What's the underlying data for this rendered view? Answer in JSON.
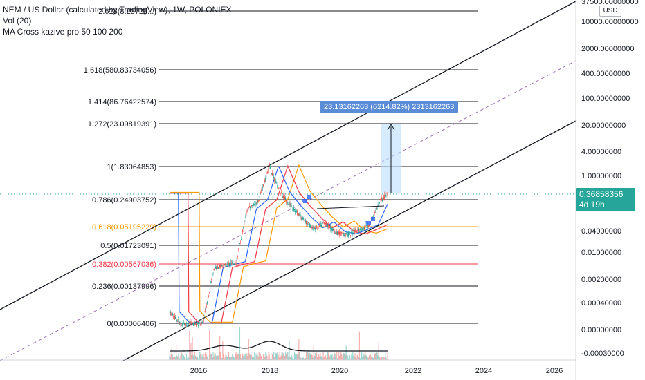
{
  "legend": {
    "symbol": "NEM / US Dollar (calculated by TradingView), 1W, POLONIEX",
    "vol": "Vol (20)",
    "ma": "MA Cross kazive pro 50 100 200"
  },
  "price_axis": {
    "currency": "USD",
    "labels": [
      "37500.00000000",
      "10000.00000000",
      "2000.00000000",
      "400.00000000",
      "100.00000000",
      "20.00000000",
      "4.00000000",
      "1.00000000",
      "0.20000000",
      "0.04000000",
      "0.01000000",
      "0.00200000",
      "0.00040000",
      "0.00000000",
      "-0.00030000"
    ],
    "current_price": "0.36858356",
    "countdown": "4d 19h"
  },
  "time_axis": [
    "2016",
    "2018",
    "2020",
    "2022",
    "2024",
    "2026"
  ],
  "fib_levels": [
    {
      "label": "2.618(8.23728...)",
      "color": "#131722"
    },
    {
      "label": "1.618(580.83734056)",
      "color": "#131722"
    },
    {
      "label": "1.414(86.76422574)",
      "color": "#131722"
    },
    {
      "label": "1.272(23.09819391)",
      "color": "#131722"
    },
    {
      "label": "1(1.83064853)",
      "color": "#131722"
    },
    {
      "label": "0.786(0.24903752)",
      "color": "#131722"
    },
    {
      "label": "0.618(0.05195229)",
      "color": "#ff9800"
    },
    {
      "label": "0.5(0.01723091)",
      "color": "#131722"
    },
    {
      "label": "0.382(0.00567036)",
      "color": "#f23645"
    },
    {
      "label": "0.236(0.00137996)",
      "color": "#131722"
    },
    {
      "label": "0(0.00006406)",
      "color": "#131722"
    }
  ],
  "measure": {
    "label": "23.13162263 (6214.82%) 2313162263"
  },
  "colors": {
    "up": "#26a69a",
    "down": "#ef5350",
    "ma50": "#2962ff",
    "ma100": "#f23645",
    "ma200": "#ff9800",
    "fib_orange": "#ff9800",
    "fib_red": "#f23645",
    "measure_fill": "#bbdefb",
    "tag": "#26a69a"
  },
  "chart_data": {
    "type": "line",
    "title": "NEM / US Dollar (calculated by TradingView), 1W, POLONIEX",
    "y_scale": "log",
    "x": [
      "2015.3",
      "2015.6",
      "2015.9",
      "2016.2",
      "2016.5",
      "2016.8",
      "2017.1",
      "2017.4",
      "2017.7",
      "2018.0",
      "2018.3",
      "2018.6",
      "2018.9",
      "2019.2",
      "2019.5",
      "2019.8",
      "2020.1",
      "2020.4",
      "2020.7",
      "2021.0",
      "2021.2"
    ],
    "series": [
      {
        "values": [
          0.0004,
          0.0002,
          0.0002,
          0.0002,
          0.005,
          0.006,
          0.007,
          0.15,
          0.25,
          1.8,
          0.4,
          0.18,
          0.09,
          0.05,
          0.07,
          0.04,
          0.035,
          0.045,
          0.06,
          0.25,
          0.37
        ]
      }
    ]
  }
}
